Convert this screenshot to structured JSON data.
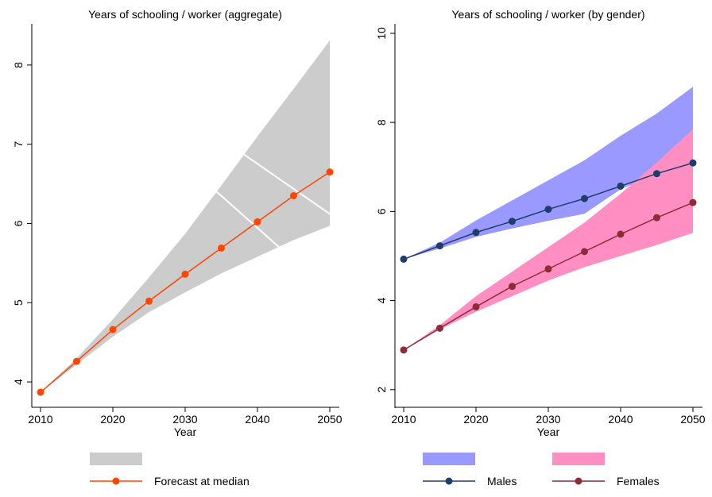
{
  "chart_data": [
    {
      "type": "line",
      "title": "Years of schooling / worker (aggregate)",
      "xlabel": "Year",
      "ylabel": "",
      "xlim": [
        2010,
        2050
      ],
      "ylim": [
        3.8,
        8.4
      ],
      "xticks": [
        2010,
        2020,
        2030,
        2040,
        2050
      ],
      "yticks": [
        4,
        5,
        6,
        7,
        8
      ],
      "x": [
        2010,
        2015,
        2020,
        2025,
        2030,
        2035,
        2040,
        2045,
        2050
      ],
      "band": {
        "color": "#cccccc",
        "lower": [
          3.87,
          4.22,
          4.57,
          4.88,
          5.13,
          5.37,
          5.58,
          5.79,
          5.97
        ],
        "upper": [
          3.87,
          4.3,
          4.79,
          5.32,
          5.87,
          6.48,
          7.1,
          7.7,
          8.31
        ],
        "inner_lines": [
          {
            "x": [
              2034,
              2043
            ],
            "y": [
              6.43,
              5.7
            ]
          },
          {
            "x": [
              2038,
              2050
            ],
            "y": [
              6.88,
              6.12
            ]
          }
        ]
      },
      "series": [
        {
          "name": "Forecast at median",
          "color": "#ff4500",
          "values": [
            3.87,
            4.26,
            4.66,
            5.02,
            5.36,
            5.69,
            6.02,
            6.35,
            6.65
          ]
        }
      ],
      "legend": {
        "placement": "bottom",
        "band_label": "",
        "series_label": "Forecast at median"
      }
    },
    {
      "type": "line",
      "title": "Years of schooling / worker (by gender)",
      "xlabel": "Year",
      "ylabel": "",
      "xlim": [
        2010,
        2050
      ],
      "ylim": [
        1.8,
        10
      ],
      "xticks": [
        2010,
        2020,
        2030,
        2040,
        2050
      ],
      "yticks": [
        2,
        4,
        6,
        8,
        10
      ],
      "x": [
        2010,
        2015,
        2020,
        2025,
        2030,
        2035,
        2040,
        2045,
        2050
      ],
      "bands": [
        {
          "color": "#9999ff",
          "lower": [
            4.93,
            5.17,
            5.43,
            5.62,
            5.79,
            5.95,
            6.5,
            6.85,
            7.2
          ],
          "upper": [
            4.93,
            5.3,
            5.8,
            6.25,
            6.7,
            7.15,
            7.7,
            8.2,
            8.8
          ]
        },
        {
          "color": "#ff8ec3",
          "lower": [
            2.89,
            3.35,
            3.75,
            4.1,
            4.45,
            4.75,
            5.0,
            5.25,
            5.52
          ],
          "upper": [
            2.89,
            3.45,
            4.1,
            4.65,
            5.2,
            5.75,
            6.4,
            7.1,
            7.85
          ]
        }
      ],
      "series": [
        {
          "name": "Males",
          "color": "#1f3d6b",
          "values": [
            4.93,
            5.23,
            5.53,
            5.78,
            6.05,
            6.29,
            6.57,
            6.85,
            7.09
          ]
        },
        {
          "name": "Females",
          "color": "#8b2c37",
          "values": [
            2.89,
            3.38,
            3.86,
            4.32,
            4.71,
            5.1,
            5.49,
            5.86,
            6.2
          ]
        }
      ],
      "legend": {
        "placement": "bottom",
        "band_labels": [
          "",
          ""
        ],
        "series_labels": [
          "Males",
          "Females"
        ]
      }
    }
  ]
}
